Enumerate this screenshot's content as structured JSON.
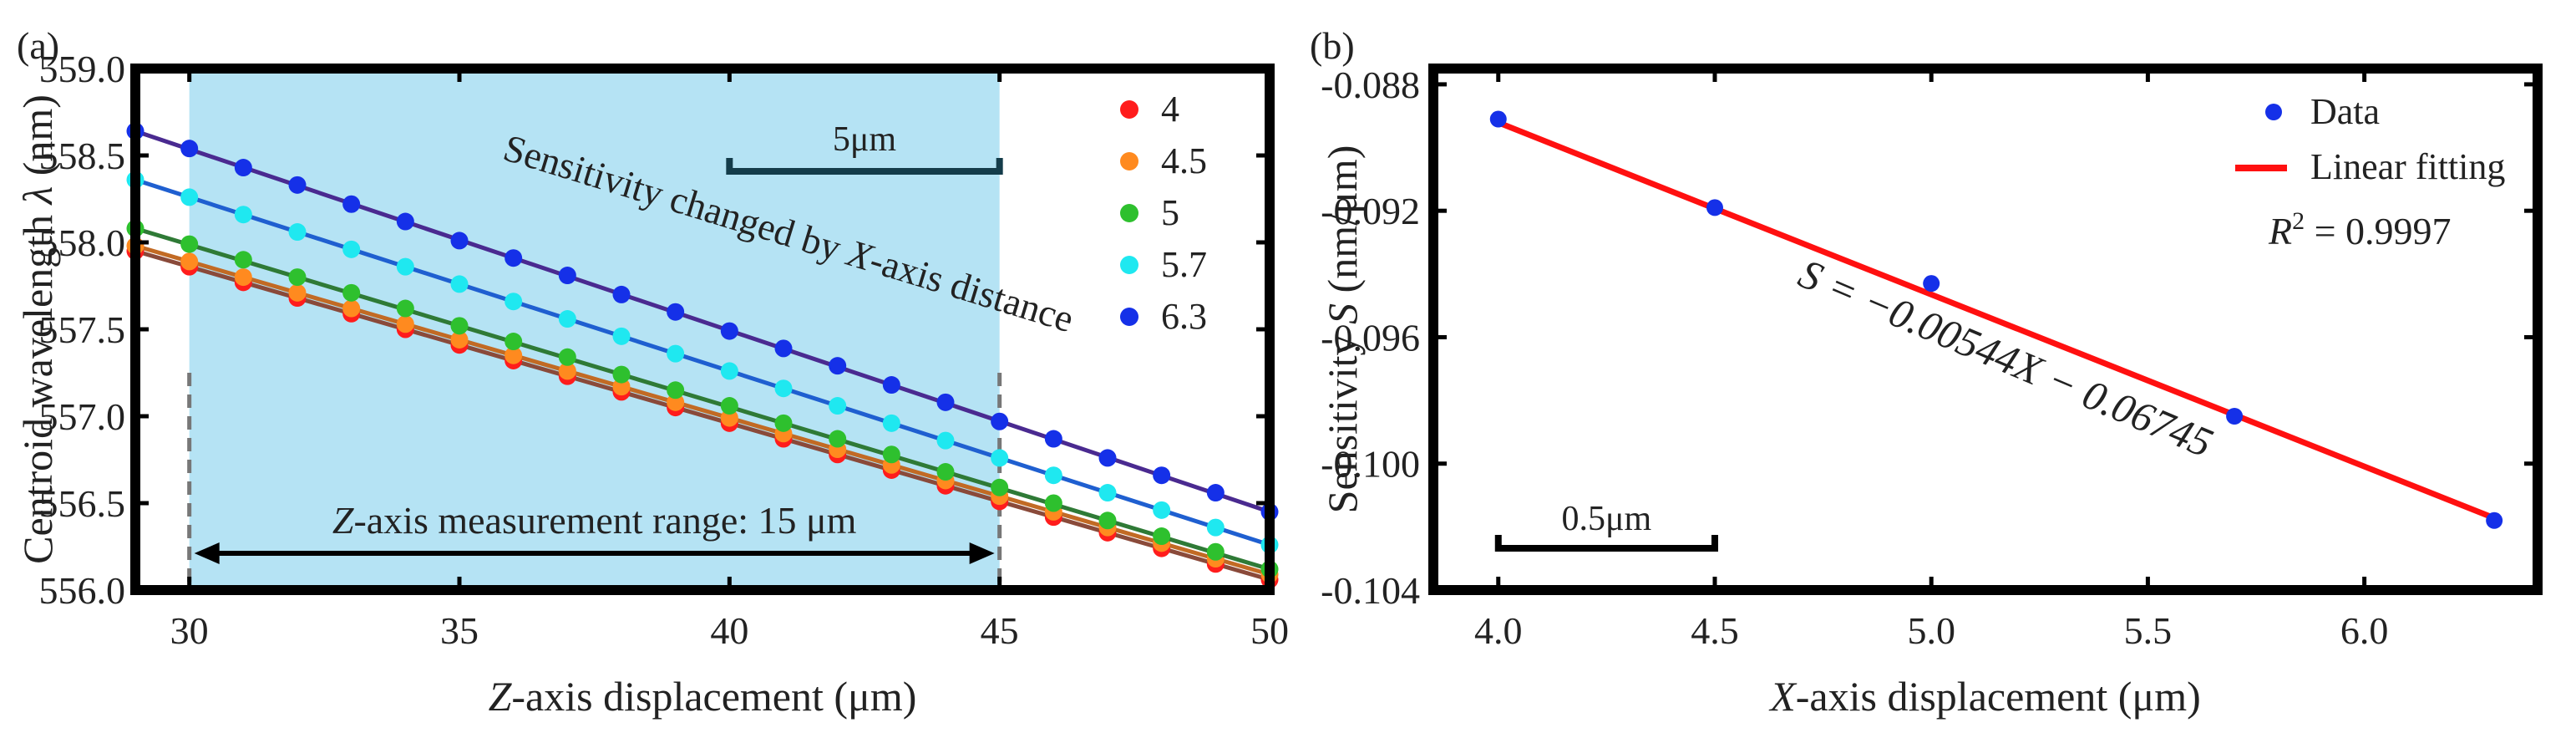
{
  "chart_data": [
    {
      "panel_label": "(a)",
      "type": "line",
      "xlabel_italic": "Z",
      "xlabel_rest": "-axis displacement (μm)",
      "ylabel_text": "Centroid wavelength ",
      "ylabel_symbol": "λ",
      "ylabel_unit": " (nm)",
      "xlim": [
        29,
        50
      ],
      "ylim": [
        556.0,
        559.0
      ],
      "x_ticks": [
        30,
        35,
        40,
        45,
        50
      ],
      "y_ticks": [
        556.0,
        556.5,
        557.0,
        557.5,
        558.0,
        558.5,
        559.0
      ],
      "y_tick_labels": [
        "556.0",
        "556.5",
        "557.0",
        "557.5",
        "558.0",
        "558.5",
        "559.0"
      ],
      "highlight_range": [
        30,
        45
      ],
      "highlight_color": "#b5e3f4",
      "x": [
        29,
        30,
        31,
        32,
        33,
        34,
        35,
        36,
        37,
        38,
        39,
        40,
        41,
        42,
        43,
        44,
        45,
        46,
        47,
        48,
        49,
        50
      ],
      "series": [
        {
          "name": "4",
          "color": "#ff1c1c",
          "fit_color": "#8a4a3a",
          "values": [
            557.95,
            557.86,
            557.77,
            557.68,
            557.59,
            557.5,
            557.41,
            557.32,
            557.23,
            557.14,
            557.05,
            556.96,
            556.87,
            556.78,
            556.69,
            556.6,
            556.51,
            556.42,
            556.33,
            556.24,
            556.15,
            556.06
          ]
        },
        {
          "name": "4.5",
          "color": "#ff8a1f",
          "fit_color": "#c26a24",
          "values": [
            557.98,
            557.89,
            557.8,
            557.71,
            557.62,
            557.53,
            557.44,
            557.35,
            557.26,
            557.17,
            557.08,
            556.99,
            556.9,
            556.81,
            556.72,
            556.63,
            556.54,
            556.45,
            556.36,
            556.27,
            556.18,
            556.09
          ]
        },
        {
          "name": "5",
          "color": "#2ec02e",
          "fit_color": "#2f7a36",
          "values": [
            558.08,
            557.99,
            557.9,
            557.8,
            557.71,
            557.62,
            557.52,
            557.43,
            557.34,
            557.24,
            557.15,
            557.06,
            556.96,
            556.87,
            556.78,
            556.68,
            556.59,
            556.5,
            556.4,
            556.31,
            556.22,
            556.12
          ]
        },
        {
          "name": "5.7",
          "color": "#1fe8f0",
          "fit_color": "#1f5fd0",
          "values": [
            558.36,
            558.26,
            558.16,
            558.06,
            557.96,
            557.86,
            557.76,
            557.66,
            557.56,
            557.46,
            557.36,
            557.26,
            557.16,
            557.06,
            556.96,
            556.86,
            556.76,
            556.66,
            556.56,
            556.46,
            556.36,
            556.26
          ]
        },
        {
          "name": "6.3",
          "color": "#1530e8",
          "fit_color": "#4a2a90",
          "values": [
            558.64,
            558.54,
            558.43,
            558.33,
            558.22,
            558.12,
            558.01,
            557.91,
            557.81,
            557.7,
            557.6,
            557.49,
            557.39,
            557.29,
            557.18,
            557.08,
            556.97,
            556.87,
            556.76,
            556.66,
            556.56,
            556.45
          ]
        }
      ],
      "annotations": {
        "scale_bar": "5μm",
        "diagonal_text_pre": "Sensitivity changed by ",
        "diagonal_text_italic": "X",
        "diagonal_text_post": "-axis distance",
        "range_italic": "Z",
        "range_text": "-axis measurement range: 15 μm"
      }
    },
    {
      "panel_label": "(b)",
      "type": "scatter",
      "xlabel_italic": "X",
      "xlabel_rest": "-axis displacement (μm)",
      "ylabel_text": "Sensitivity ",
      "ylabel_symbol": "S",
      "ylabel_unit": " (nm/μm)",
      "xlim": [
        3.85,
        6.4
      ],
      "ylim": [
        -0.104,
        -0.0875
      ],
      "x_ticks": [
        4.0,
        4.5,
        5.0,
        5.5,
        6.0
      ],
      "x_tick_labels": [
        "4.0",
        "4.5",
        "5.0",
        "5.5",
        "6.0"
      ],
      "y_ticks": [
        -0.088,
        -0.092,
        -0.096,
        -0.1,
        -0.104
      ],
      "y_tick_labels": [
        "-0.088",
        "-0.092",
        "-0.096",
        "-0.100",
        "-0.104"
      ],
      "series": [
        {
          "name": "Data",
          "color": "#1530e8",
          "x": [
            4.0,
            4.5,
            5.0,
            5.7,
            6.3
          ],
          "values": [
            -0.0891,
            -0.0919,
            -0.0943,
            -0.0985,
            -0.1018
          ]
        }
      ],
      "fit": {
        "name": "Linear fitting",
        "color": "#ff1010",
        "slope": -0.00544,
        "intercept": -0.06745,
        "x_range": [
          4.0,
          6.3
        ]
      },
      "r2_label": "R",
      "r2_value": " = 0.9997",
      "equation": "S = −0.00544X − 0.06745",
      "scale_bar": "0.5μm"
    }
  ]
}
